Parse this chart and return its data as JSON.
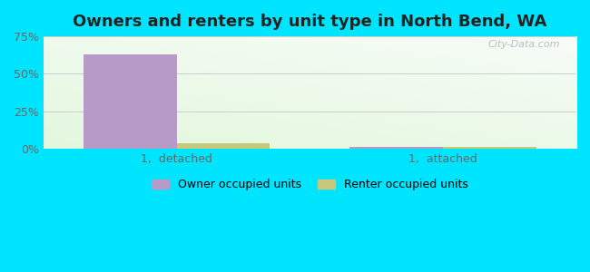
{
  "title": "Owners and renters by unit type in North Bend, WA",
  "categories": [
    "1,  detached",
    "1,  attached"
  ],
  "owner_values": [
    63.0,
    1.5
  ],
  "renter_values": [
    3.5,
    1.2
  ],
  "owner_color": "#b89ac8",
  "renter_color": "#c8c87a",
  "ylim": [
    0,
    75
  ],
  "yticks": [
    0,
    25,
    50,
    75
  ],
  "yticklabels": [
    "0%",
    "25%",
    "50%",
    "75%"
  ],
  "background_outer": "#00e5ff",
  "bar_width": 0.35,
  "legend_labels": [
    "Owner occupied units",
    "Renter occupied units"
  ],
  "watermark": "City-Data.com",
  "title_fontsize": 13,
  "axis_fontsize": 9,
  "legend_fontsize": 9,
  "grid_color": "#dddddd",
  "x_positions": [
    0.5,
    1.5
  ],
  "xlim": [
    0.0,
    2.0
  ]
}
